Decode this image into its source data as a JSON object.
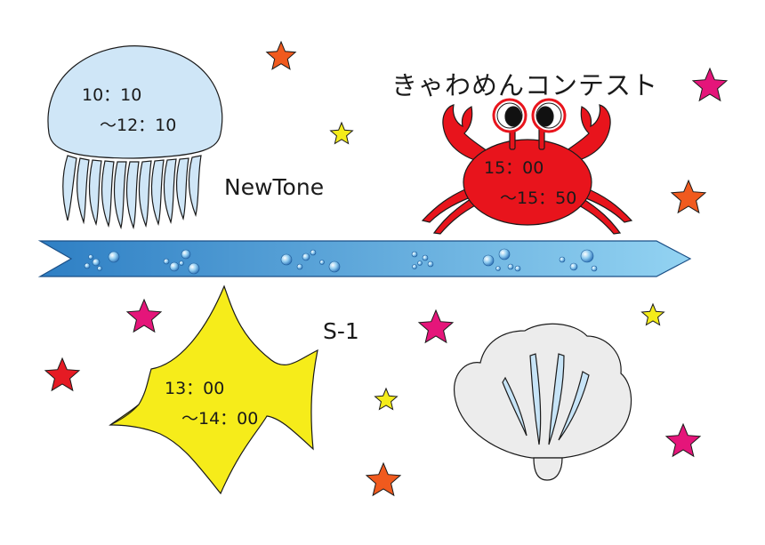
{
  "events": {
    "jellyfish": {
      "time_start": "10：10",
      "time_end": "～12：10",
      "name": "NewTone"
    },
    "crab": {
      "time_start": "15：00",
      "time_end": "～15：50",
      "name": "きゃわめんコンテスト"
    },
    "fish": {
      "time_start": "13：00",
      "time_end": "～14：00",
      "name": "S-1"
    }
  },
  "colors": {
    "jellyfish": "#cfe6f7",
    "crab": "#e8141c",
    "fish": "#f6ec1a",
    "shell": "#ececec",
    "ribbon_start": "#2e7fc4",
    "ribbon_end": "#8fd0f0",
    "star_orange": "#f05a1e",
    "star_pink": "#e5157a",
    "star_yellow": "#f4ec1a",
    "star_red": "#e51b24"
  },
  "icons": [
    "jellyfish-icon",
    "crab-icon",
    "fish-icon",
    "shell-icon",
    "star-icon",
    "bubble-icon"
  ]
}
